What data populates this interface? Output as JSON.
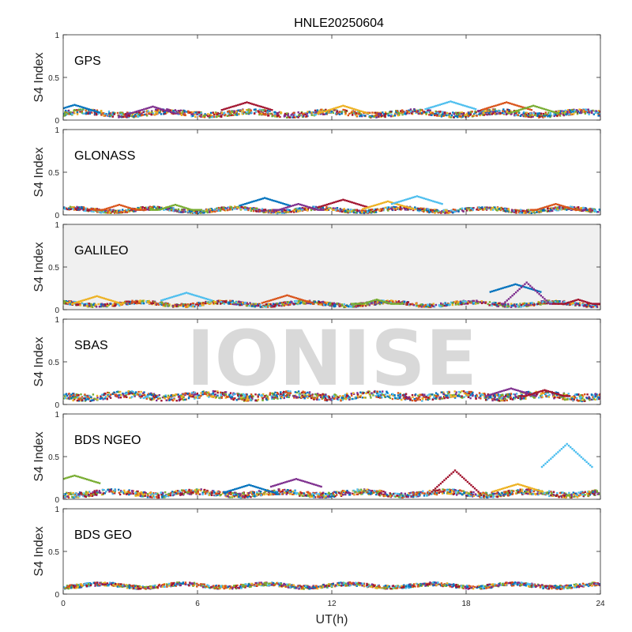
{
  "chart_data": {
    "type": "scatter",
    "title": "HNLE20250604",
    "xlabel": "UT(h)",
    "ylabel": "S4 Index",
    "xlim": [
      0,
      24
    ],
    "ylim": [
      0,
      1
    ],
    "xticks": [
      0,
      6,
      12,
      18,
      24
    ],
    "yticks": [
      0,
      0.5,
      1
    ],
    "ytick_labels": [
      "0",
      "0.5",
      "1"
    ],
    "grid": false,
    "series_colors": [
      "#0072bd",
      "#d95319",
      "#edb120",
      "#7e2f8e",
      "#77ac30",
      "#4dbeee",
      "#a2142f"
    ],
    "panels": [
      {
        "label": "GPS",
        "background": "#ffffff",
        "baseline": 0.08,
        "noise": 0.03,
        "features": [
          {
            "x": 0.5,
            "y": 0.18
          },
          {
            "x": 4.0,
            "y": 0.16
          },
          {
            "x": 8.2,
            "y": 0.21
          },
          {
            "x": 12.5,
            "y": 0.17
          },
          {
            "x": 17.3,
            "y": 0.22
          },
          {
            "x": 19.8,
            "y": 0.21
          },
          {
            "x": 21.0,
            "y": 0.17
          }
        ]
      },
      {
        "label": "GLONASS",
        "background": "#ffffff",
        "baseline": 0.06,
        "noise": 0.02,
        "features": [
          {
            "x": 2.5,
            "y": 0.12
          },
          {
            "x": 5.0,
            "y": 0.12
          },
          {
            "x": 9.0,
            "y": 0.2
          },
          {
            "x": 10.5,
            "y": 0.13
          },
          {
            "x": 12.5,
            "y": 0.18
          },
          {
            "x": 14.5,
            "y": 0.16
          },
          {
            "x": 15.8,
            "y": 0.22
          },
          {
            "x": 22.0,
            "y": 0.13
          }
        ]
      },
      {
        "label": "GALILEO",
        "background": "#f0f0f0",
        "baseline": 0.07,
        "noise": 0.02,
        "features": [
          {
            "x": 1.5,
            "y": 0.16
          },
          {
            "x": 5.5,
            "y": 0.2
          },
          {
            "x": 10.0,
            "y": 0.17
          },
          {
            "x": 14.0,
            "y": 0.12
          },
          {
            "x": 20.2,
            "y": 0.3
          },
          {
            "x": 20.7,
            "y": 0.32
          },
          {
            "x": 23.0,
            "y": 0.12
          }
        ]
      },
      {
        "label": "SBAS",
        "background": "#ffffff",
        "baseline": 0.1,
        "noise": 0.04,
        "features": [
          {
            "x": 20.0,
            "y": 0.19
          },
          {
            "x": 21.5,
            "y": 0.17
          }
        ]
      },
      {
        "label": "BDS NGEO",
        "background": "#ffffff",
        "baseline": 0.07,
        "noise": 0.03,
        "features": [
          {
            "x": 0.5,
            "y": 0.28
          },
          {
            "x": 8.3,
            "y": 0.17
          },
          {
            "x": 10.4,
            "y": 0.24
          },
          {
            "x": 17.5,
            "y": 0.34
          },
          {
            "x": 20.3,
            "y": 0.18
          },
          {
            "x": 22.5,
            "y": 0.65
          }
        ]
      },
      {
        "label": "BDS GEO",
        "background": "#ffffff",
        "baseline": 0.1,
        "noise": 0.02,
        "features": []
      }
    ],
    "watermark": "IONISE"
  }
}
